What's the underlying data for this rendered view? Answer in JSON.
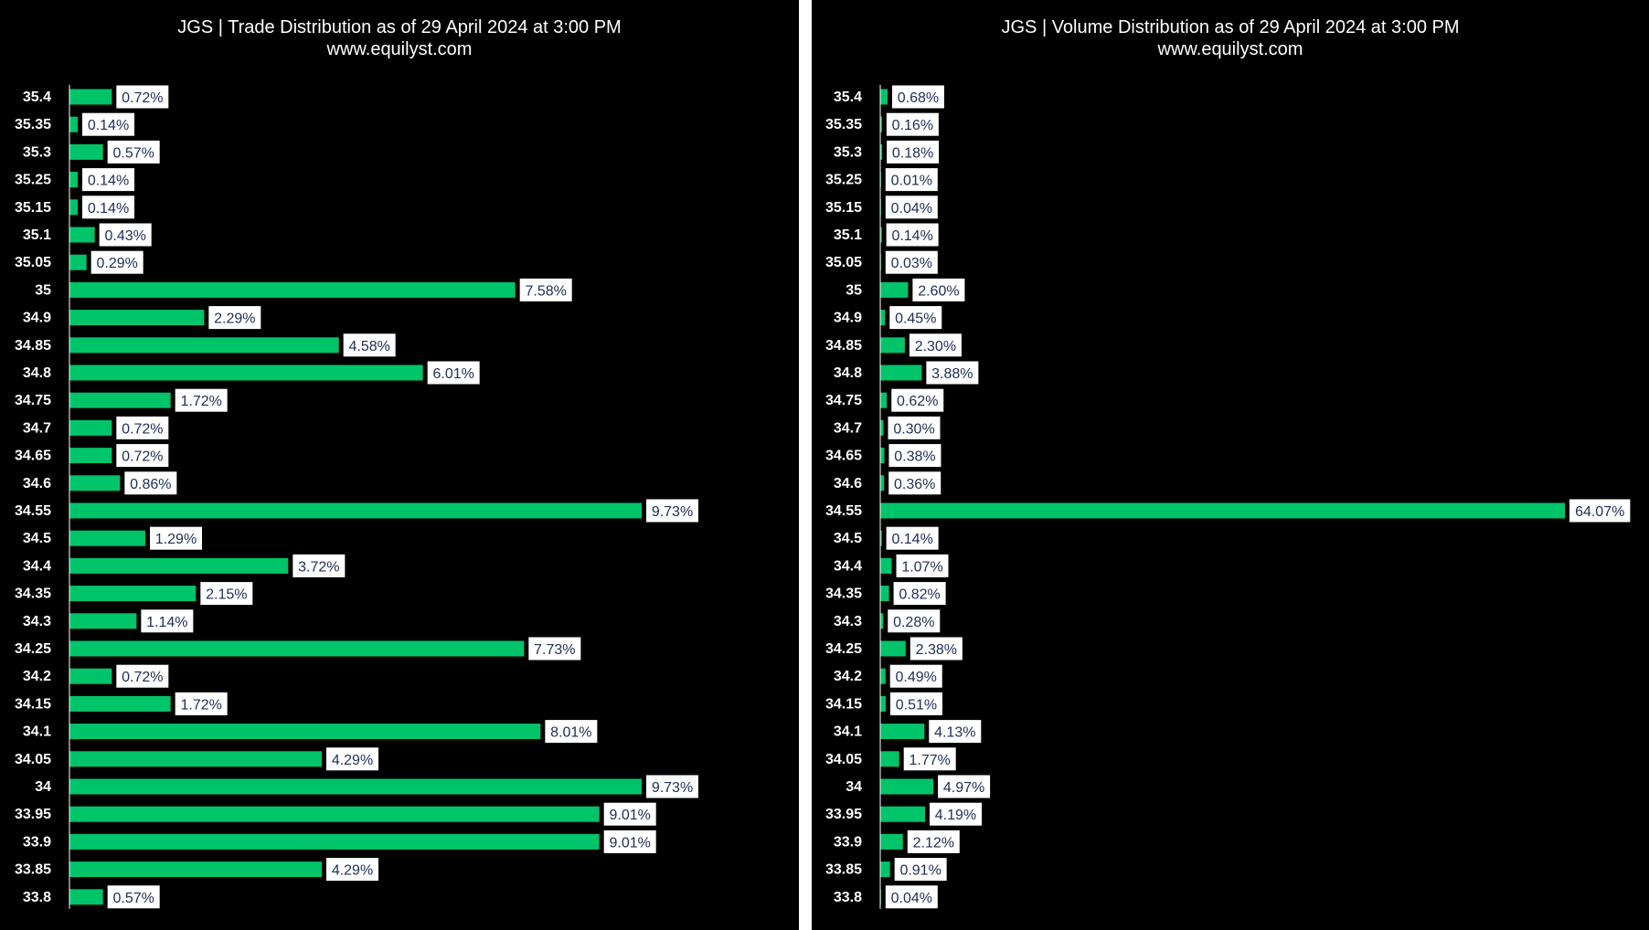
{
  "colors": {
    "background": "#000000",
    "bar": "#00c46a",
    "label_box": "#ffffff",
    "label_text": "#1f2d5a",
    "tick_text": "#ffffff",
    "axis": "#ffffff"
  },
  "chart_data": [
    {
      "type": "bar",
      "orientation": "horizontal",
      "title": "JGS | Trade Distribution as of 29 April 2024 at 3:00 PM",
      "subtitle": "www.equilyst.com",
      "categories": [
        "35.4",
        "35.35",
        "35.3",
        "35.25",
        "35.15",
        "35.1",
        "35.05",
        "35",
        "34.9",
        "34.85",
        "34.8",
        "34.75",
        "34.7",
        "34.65",
        "34.6",
        "34.55",
        "34.5",
        "34.4",
        "34.35",
        "34.3",
        "34.25",
        "34.2",
        "34.15",
        "34.1",
        "34.05",
        "34",
        "33.95",
        "33.9",
        "33.85",
        "33.8"
      ],
      "values": [
        0.72,
        0.14,
        0.57,
        0.14,
        0.14,
        0.43,
        0.29,
        7.58,
        2.29,
        4.58,
        6.01,
        1.72,
        0.72,
        0.72,
        0.86,
        9.73,
        1.29,
        3.72,
        2.15,
        1.14,
        7.73,
        0.72,
        1.72,
        8.01,
        4.29,
        9.73,
        9.01,
        9.01,
        4.29,
        0.57
      ],
      "data_labels": [
        "0.72%",
        "0.14%",
        "0.57%",
        "0.14%",
        "0.14%",
        "0.43%",
        "0.29%",
        "7.58%",
        "2.29%",
        "4.58%",
        "6.01%",
        "1.72%",
        "0.72%",
        "0.72%",
        "0.86%",
        "9.73%",
        "1.29%",
        "3.72%",
        "2.15%",
        "1.14%",
        "7.73%",
        "0.72%",
        "1.72%",
        "8.01%",
        "4.29%",
        "9.73%",
        "9.01%",
        "9.01%",
        "4.29%",
        "0.57%"
      ],
      "xlim": [
        0,
        10
      ],
      "xlabel": "",
      "ylabel": "",
      "grid": false,
      "legend": "none"
    },
    {
      "type": "bar",
      "orientation": "horizontal",
      "title": "JGS | Volume Distribution as of 29 April 2024 at 3:00 PM",
      "subtitle": "www.equilyst.com",
      "categories": [
        "35.4",
        "35.35",
        "35.3",
        "35.25",
        "35.15",
        "35.1",
        "35.05",
        "35",
        "34.9",
        "34.85",
        "34.8",
        "34.75",
        "34.7",
        "34.65",
        "34.6",
        "34.55",
        "34.5",
        "34.4",
        "34.35",
        "34.3",
        "34.25",
        "34.2",
        "34.15",
        "34.1",
        "34.05",
        "34",
        "33.95",
        "33.9",
        "33.85",
        "33.8"
      ],
      "values": [
        0.68,
        0.16,
        0.18,
        0.01,
        0.04,
        0.14,
        0.03,
        2.6,
        0.45,
        2.3,
        3.88,
        0.62,
        0.3,
        0.38,
        0.36,
        64.07,
        0.14,
        1.07,
        0.82,
        0.28,
        2.38,
        0.49,
        0.51,
        4.13,
        1.77,
        4.97,
        4.19,
        2.12,
        0.91,
        0.04
      ],
      "data_labels": [
        "0.68%",
        "0.16%",
        "0.18%",
        "0.01%",
        "0.04%",
        "0.14%",
        "0.03%",
        "2.60%",
        "0.45%",
        "2.30%",
        "3.88%",
        "0.62%",
        "0.30%",
        "0.38%",
        "0.36%",
        "64.07%",
        "0.14%",
        "1.07%",
        "0.82%",
        "0.28%",
        "2.38%",
        "0.49%",
        "0.51%",
        "4.13%",
        "1.77%",
        "4.97%",
        "4.19%",
        "2.12%",
        "0.91%",
        "0.04%"
      ],
      "xlim": [
        0,
        66
      ],
      "xlabel": "",
      "ylabel": "",
      "grid": false,
      "legend": "none"
    }
  ]
}
